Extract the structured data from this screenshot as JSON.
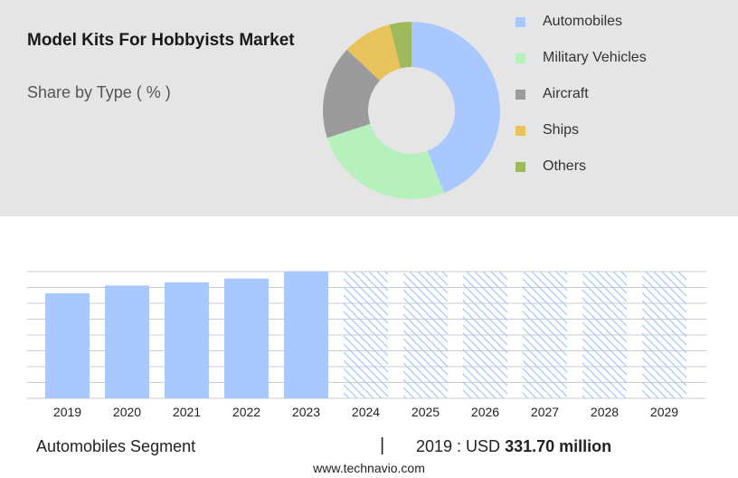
{
  "title": "Model Kits For Hobbyists Market",
  "subtitle": "Share by Type ( % )",
  "colors": {
    "panel_background": "#e5e5e5",
    "bar_actual": "#a8c8ff",
    "bar_forecast_hatch": "#a8c8ff"
  },
  "chart_data": [
    {
      "type": "pie",
      "donut": true,
      "legend_position": "right",
      "slices": [
        {
          "label": "Automobiles",
          "value": 44,
          "color": "#a8c8ff"
        },
        {
          "label": "Military Vehicles",
          "value": 26,
          "color": "#b6f1bd"
        },
        {
          "label": "Aircraft",
          "value": 17,
          "color": "#9b9b9b"
        },
        {
          "label": "Ships",
          "value": 9,
          "color": "#e8c25a"
        },
        {
          "label": "Others",
          "value": 4,
          "color": "#9eba5c"
        }
      ]
    },
    {
      "type": "bar",
      "categories": [
        "2019",
        "2020",
        "2021",
        "2022",
        "2023",
        "2024",
        "2025",
        "2026",
        "2027",
        "2028",
        "2029"
      ],
      "values": [
        331.7,
        356,
        366,
        378,
        400,
        null,
        null,
        null,
        null,
        null,
        null
      ],
      "forecast_categories": [
        "2024",
        "2025",
        "2026",
        "2027",
        "2028",
        "2029"
      ],
      "value_unit": "USD million",
      "ylim": [
        0,
        400
      ],
      "grid": true,
      "y_axis_labels_shown": false
    }
  ],
  "footer": {
    "segment": "Automobiles Segment",
    "separator": "|",
    "year_currency": "2019 : USD",
    "amount": "331.70 million"
  },
  "source": "www.technavio.com"
}
